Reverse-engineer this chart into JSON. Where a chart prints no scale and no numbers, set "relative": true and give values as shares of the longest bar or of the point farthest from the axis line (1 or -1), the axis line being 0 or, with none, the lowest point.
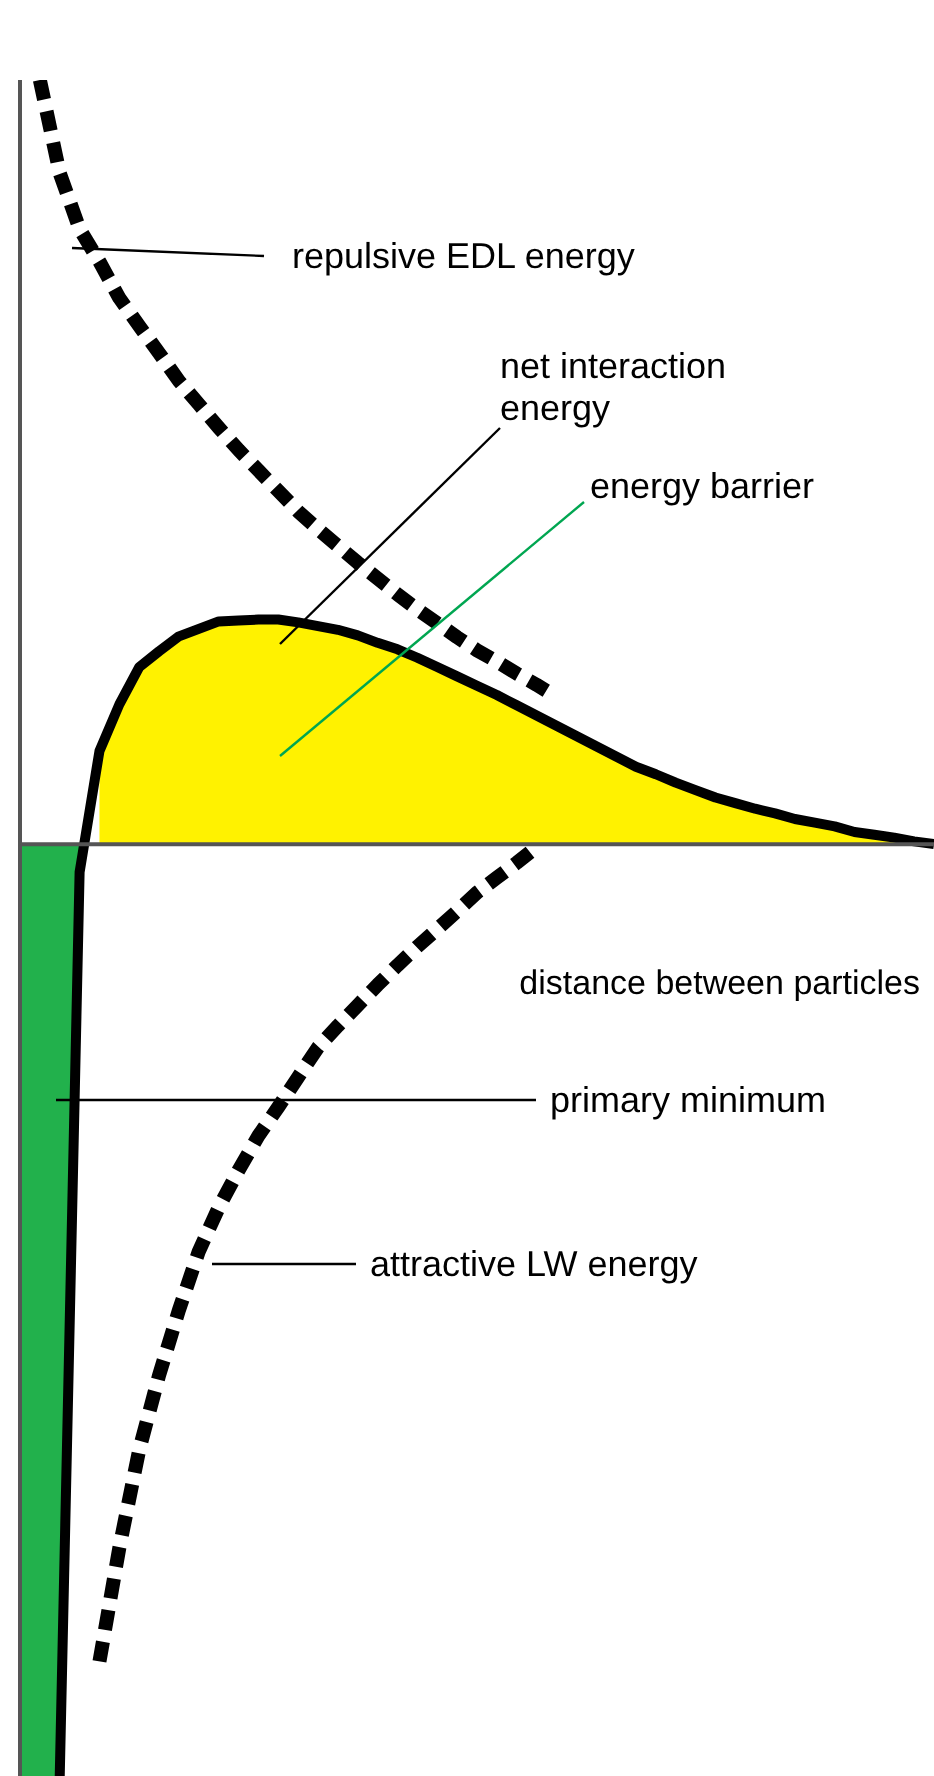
{
  "chart_data": {
    "type": "line",
    "relative": true,
    "xlabel": "distance between particles",
    "categories": [
      null,
      null,
      null,
      null,
      null,
      null,
      null,
      null,
      null,
      null,
      null,
      null,
      null,
      null,
      null,
      null,
      null,
      null,
      null,
      null,
      null,
      null,
      null,
      null,
      null,
      null,
      null,
      null,
      null,
      null,
      null,
      null,
      null,
      null,
      null,
      null,
      null,
      null,
      null,
      null,
      null,
      null,
      null,
      null,
      null,
      null,
      null
    ],
    "series": [
      {
        "type": "area",
        "color": "#22b14c",
        "values": [
          -1,
          -1,
          -1,
          -0.03,
          null,
          null,
          null,
          null,
          null,
          null,
          null,
          null,
          null,
          null,
          null,
          null,
          null,
          null,
          null,
          null,
          null,
          null,
          null,
          null,
          null,
          null,
          null,
          null,
          null,
          null,
          null,
          null,
          null,
          null,
          null,
          null,
          null,
          null,
          null,
          null,
          null,
          null,
          null,
          null,
          null,
          null,
          null
        ]
      },
      {
        "type": "area",
        "color": "#fff200",
        "values": [
          null,
          null,
          null,
          null,
          0.1,
          0.15,
          0.19,
          0.207,
          0.223,
          0.231,
          0.239,
          0.24,
          0.241,
          0.241,
          0.238,
          0.234,
          0.23,
          0.224,
          0.216,
          0.209,
          0.2,
          0.19,
          0.18,
          0.17,
          0.16,
          0.149,
          0.138,
          0.127,
          0.116,
          0.105,
          0.094,
          0.083,
          0.075,
          0.066,
          0.058,
          0.05,
          0.044,
          0.038,
          0.033,
          0.027,
          0.023,
          0.019,
          0.013,
          0.01,
          0.007,
          0.003,
          0
        ]
      },
      {
        "color": "#000000",
        "line_style": "dashed",
        "values": [
          null,
          0.82,
          0.72,
          0.66,
          0.625,
          0.586,
          0.556,
          0.527,
          0.497,
          0.472,
          0.447,
          0.423,
          0.401,
          0.379,
          0.357,
          0.338,
          0.32,
          0.302,
          0.285,
          0.268,
          0.252,
          0.237,
          0.222,
          0.208,
          0.196,
          0.183,
          0.171,
          0.158,
          null,
          null,
          null,
          null,
          null,
          null,
          null,
          null,
          null,
          null,
          null,
          null,
          null,
          null,
          null,
          null,
          null,
          null,
          null
        ]
      },
      {
        "color": "#000000",
        "line_style": "dashed",
        "values": [
          null,
          null,
          null,
          null,
          -0.877,
          -0.755,
          -0.65,
          -0.57,
          -0.5,
          -0.437,
          -0.39,
          -0.35,
          -0.313,
          -0.282,
          -0.25,
          -0.218,
          -0.195,
          -0.173,
          -0.151,
          -0.13,
          -0.11,
          -0.091,
          -0.072,
          -0.052,
          -0.036,
          -0.02,
          -0.003,
          null,
          null,
          null,
          null,
          null,
          null,
          null,
          null,
          null,
          null,
          null,
          null,
          null,
          null,
          null,
          null,
          null,
          null,
          null,
          null
        ]
      },
      {
        "color": "#000000",
        "line_style": "solid",
        "values": [
          null,
          null,
          -1,
          -0.03,
          0.1,
          0.15,
          0.19,
          0.207,
          0.223,
          0.231,
          0.239,
          0.24,
          0.241,
          0.241,
          0.238,
          0.234,
          0.23,
          0.224,
          0.216,
          0.209,
          0.2,
          0.19,
          0.18,
          0.17,
          0.16,
          0.149,
          0.138,
          0.127,
          0.116,
          0.105,
          0.094,
          0.083,
          0.075,
          0.066,
          0.058,
          0.05,
          0.044,
          0.038,
          0.033,
          0.027,
          0.023,
          0.019,
          0.013,
          0.01,
          0.007,
          0.003,
          0
        ]
      }
    ],
    "annotations": [
      "repulsive EDL energy",
      "net interaction energy",
      "energy barrier",
      "primary minimum",
      "attractive LW energy"
    ]
  }
}
